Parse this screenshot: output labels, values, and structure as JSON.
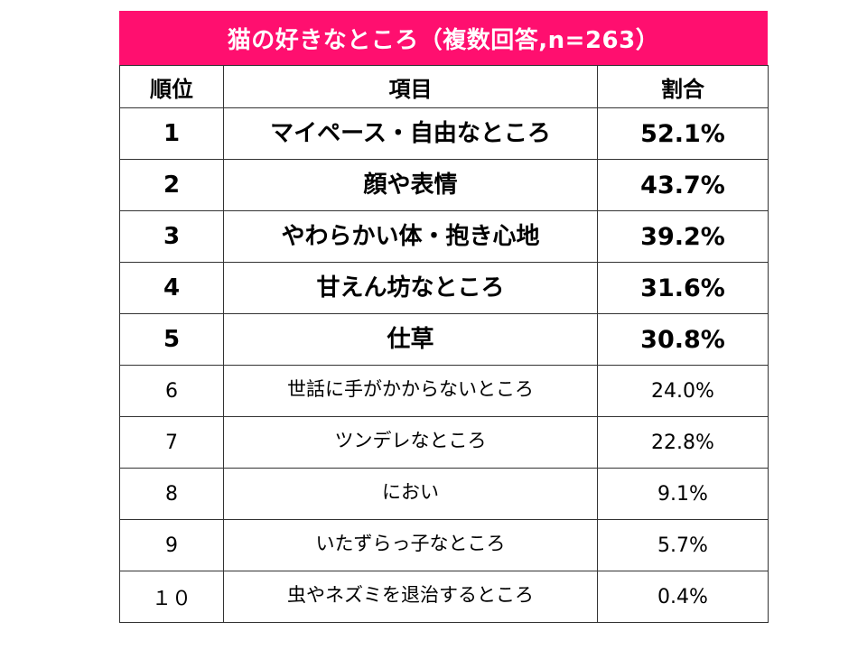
{
  "title": "猫の好きなところ（複数回答,n=263）",
  "headers": {
    "rank": "順位",
    "item": "項目",
    "percent": "割合"
  },
  "rows": [
    {
      "rank": "1",
      "item": "マイペース・自由なところ",
      "percent": "52.1%"
    },
    {
      "rank": "2",
      "item": "顔や表情",
      "percent": "43.7%"
    },
    {
      "rank": "3",
      "item": "やわらかい体・抱き心地",
      "percent": "39.2%"
    },
    {
      "rank": "4",
      "item": "甘えん坊なところ",
      "percent": "31.6%"
    },
    {
      "rank": "5",
      "item": "仕草",
      "percent": "30.8%"
    },
    {
      "rank": "6",
      "item": "世話に手がかからないところ",
      "percent": "24.0%"
    },
    {
      "rank": "7",
      "item": "ツンデレなところ",
      "percent": "22.8%"
    },
    {
      "rank": "8",
      "item": "におい",
      "percent": "9.1%"
    },
    {
      "rank": "9",
      "item": "いたずらっ子なところ",
      "percent": "5.7%"
    },
    {
      "rank": "１０",
      "item": "虫やネズミを退治するところ",
      "percent": "0.4%"
    }
  ]
}
